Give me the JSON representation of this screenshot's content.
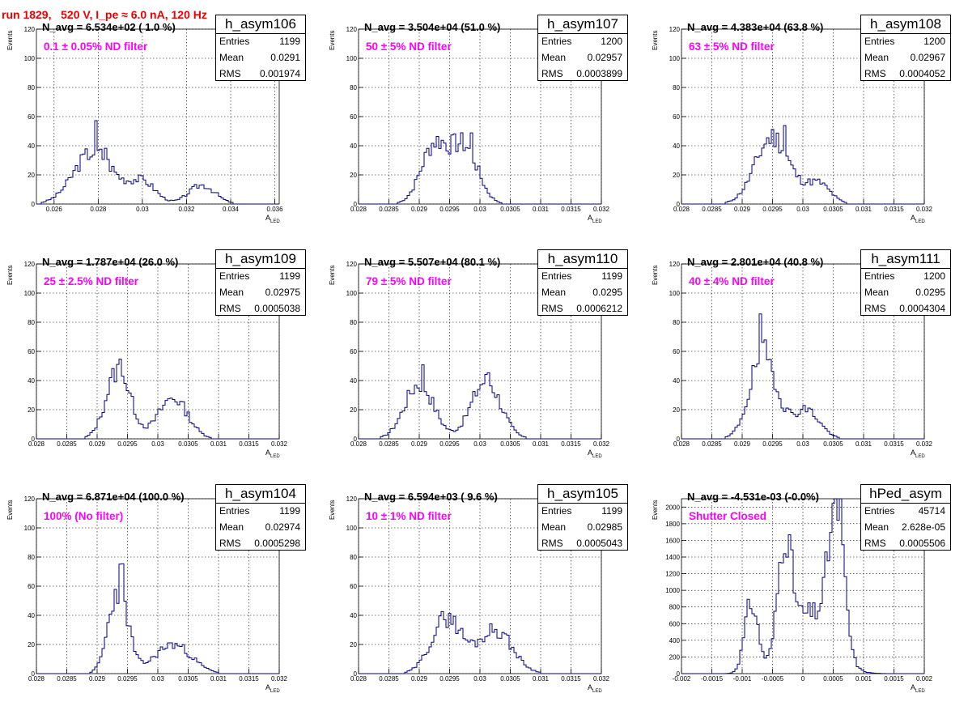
{
  "header": {
    "run_title": "run 1829,   520 V, I_pe ≈ 6.0 nA, 120 Hz"
  },
  "axis_labels": {
    "y": "Events",
    "x": "A",
    "x_sub": "LED"
  },
  "stat_labels": {
    "entries": "Entries",
    "mean": "Mean",
    "rms": "RMS"
  },
  "colors": {
    "histogram": "#000080",
    "title_text": "#ee0000",
    "filter_text": "#ff00ff",
    "grid": "#000000"
  },
  "chart_data": [
    {
      "type": "histogram",
      "name": "h_asym106",
      "navg": "N_avg = 6.534e+02 ( 1.0 %)",
      "filter": "0.1 ± 0.05% ND filter",
      "entries": "1199",
      "mean": "0.0291",
      "rms": "0.001974",
      "xlim": [
        0.0252,
        0.0362
      ],
      "ylim": [
        0,
        120
      ],
      "grid": true,
      "xticks": [
        "0.026",
        "0.028",
        "0.03",
        "0.032",
        "0.034",
        "0.036"
      ],
      "yticks": [
        "0",
        "20",
        "40",
        "60",
        "80",
        "100",
        "120"
      ],
      "peaks": [
        {
          "mu": 0.0278,
          "sigma": 0.0009,
          "amp": 36
        },
        {
          "mu": 0.03,
          "sigma": 0.0006,
          "amp": 15
        },
        {
          "mu": 0.0327,
          "sigma": 0.0006,
          "amp": 13
        }
      ],
      "spikes": [
        [
          0.0279,
          51
        ],
        [
          0.0283,
          41
        ]
      ],
      "seed": 3
    },
    {
      "type": "histogram",
      "name": "h_asym107",
      "navg": "N_avg = 3.504e+04 (51.0 %)",
      "filter": "50 ± 5% ND filter",
      "entries": "1200",
      "mean": "0.02957",
      "rms": "0.0003899",
      "xlim": [
        0.028,
        0.032
      ],
      "ylim": [
        0,
        120
      ],
      "grid": true,
      "xticks": [
        "0.028",
        "0.0285",
        "0.029",
        "0.0295",
        "0.03",
        "0.0305",
        "0.031",
        "0.0315",
        "0.032"
      ],
      "yticks": [
        "0",
        "20",
        "40",
        "60",
        "80",
        "100",
        "120"
      ],
      "peaks": [
        {
          "mu": 0.02925,
          "sigma": 0.00022,
          "amp": 40
        },
        {
          "mu": 0.02975,
          "sigma": 0.00022,
          "amp": 38
        }
      ],
      "spikes": [
        [
          0.02985,
          46
        ]
      ],
      "seed": 7
    },
    {
      "type": "histogram",
      "name": "h_asym108",
      "navg": "N_avg = 4.383e+04 (63.8 %)",
      "filter": "63 ± 5% ND filter",
      "entries": "1200",
      "mean": "0.02967",
      "rms": "0.0004052",
      "xlim": [
        0.028,
        0.032
      ],
      "ylim": [
        0,
        120
      ],
      "grid": true,
      "xticks": [
        "0.028",
        "0.0285",
        "0.029",
        "0.0295",
        "0.03",
        "0.0305",
        "0.031",
        "0.0315",
        "0.032"
      ],
      "yticks": [
        "0",
        "20",
        "40",
        "60",
        "80",
        "100",
        "120"
      ],
      "peaks": [
        {
          "mu": 0.0295,
          "sigma": 0.00028,
          "amp": 46
        },
        {
          "mu": 0.03025,
          "sigma": 0.0002,
          "amp": 14
        }
      ],
      "spikes": [
        [
          0.0297,
          55
        ]
      ],
      "seed": 11
    },
    {
      "type": "histogram",
      "name": "h_asym109",
      "navg": "N_avg = 1.787e+04 (26.0 %)",
      "filter": "25 ± 2.5% ND filter",
      "entries": "1199",
      "mean": "0.02975",
      "rms": "0.0005038",
      "xlim": [
        0.028,
        0.032
      ],
      "ylim": [
        0,
        120
      ],
      "grid": true,
      "xticks": [
        "0.028",
        "0.0285",
        "0.029",
        "0.0295",
        "0.03",
        "0.0305",
        "0.031",
        "0.0315",
        "0.032"
      ],
      "yticks": [
        "0",
        "20",
        "40",
        "60",
        "80",
        "100",
        "120"
      ],
      "peaks": [
        {
          "mu": 0.02935,
          "sigma": 0.0002,
          "amp": 47
        },
        {
          "mu": 0.03025,
          "sigma": 0.00024,
          "amp": 28
        }
      ],
      "spikes": [
        [
          0.0294,
          51
        ]
      ],
      "seed": 13
    },
    {
      "type": "histogram",
      "name": "h_asym110",
      "navg": "N_avg = 5.507e+04 (80.1 %)",
      "filter": "79 ± 5% ND filter",
      "entries": "1199",
      "mean": "0.0295",
      "rms": "0.0006212",
      "xlim": [
        0.028,
        0.032
      ],
      "ylim": [
        0,
        120
      ],
      "grid": true,
      "xticks": [
        "0.028",
        "0.0285",
        "0.029",
        "0.0295",
        "0.03",
        "0.0305",
        "0.031",
        "0.0315",
        "0.032"
      ],
      "yticks": [
        "0",
        "20",
        "40",
        "60",
        "80",
        "100",
        "120"
      ],
      "peaks": [
        {
          "mu": 0.029,
          "sigma": 0.00024,
          "amp": 38
        },
        {
          "mu": 0.0301,
          "sigma": 0.00024,
          "amp": 40
        }
      ],
      "spikes": [
        [
          0.02905,
          47
        ],
        [
          0.03015,
          47
        ]
      ],
      "seed": 17
    },
    {
      "type": "histogram",
      "name": "h_asym111",
      "navg": "N_avg = 2.801e+04 (40.8 %)",
      "filter": "40 ± 4% ND filter",
      "entries": "1200",
      "mean": "0.0295",
      "rms": "0.0004304",
      "xlim": [
        0.028,
        0.032
      ],
      "ylim": [
        0,
        120
      ],
      "grid": true,
      "xticks": [
        "0.028",
        "0.0285",
        "0.029",
        "0.0295",
        "0.03",
        "0.0305",
        "0.031",
        "0.0315",
        "0.032"
      ],
      "yticks": [
        "0",
        "20",
        "40",
        "60",
        "80",
        "100",
        "120"
      ],
      "peaks": [
        {
          "mu": 0.02935,
          "sigma": 0.00022,
          "amp": 58
        },
        {
          "mu": 0.03005,
          "sigma": 0.00022,
          "amp": 20
        }
      ],
      "spikes": [
        [
          0.0293,
          75
        ]
      ],
      "seed": 19
    },
    {
      "type": "histogram",
      "name": "h_asym104",
      "navg": "N_avg = 6.871e+04 (100.0 %)",
      "filter": "100% (No filter)",
      "entries": "1199",
      "mean": "0.02974",
      "rms": "0.0005298",
      "xlim": [
        0.028,
        0.032
      ],
      "ylim": [
        0,
        120
      ],
      "grid": true,
      "xticks": [
        "0.028",
        "0.0285",
        "0.029",
        "0.0295",
        "0.03",
        "0.0305",
        "0.031",
        "0.0315",
        "0.032"
      ],
      "yticks": [
        "0",
        "20",
        "40",
        "60",
        "80",
        "100",
        "120"
      ],
      "peaks": [
        {
          "mu": 0.02935,
          "sigma": 0.00016,
          "amp": 58
        },
        {
          "mu": 0.03025,
          "sigma": 0.0003,
          "amp": 20
        }
      ],
      "spikes": [
        [
          0.0294,
          67
        ]
      ],
      "seed": 23
    },
    {
      "type": "histogram",
      "name": "h_asym105",
      "navg": "N_avg = 6.594e+03 ( 9.6 %)",
      "filter": "10 ± 1% ND filter",
      "entries": "1199",
      "mean": "0.02985",
      "rms": "0.0005043",
      "xlim": [
        0.028,
        0.032
      ],
      "ylim": [
        0,
        120
      ],
      "grid": true,
      "xticks": [
        "0.028",
        "0.0285",
        "0.029",
        "0.0295",
        "0.03",
        "0.0305",
        "0.031",
        "0.0315",
        "0.032"
      ],
      "yticks": [
        "0",
        "20",
        "40",
        "60",
        "80",
        "100",
        "120"
      ],
      "peaks": [
        {
          "mu": 0.02945,
          "sigma": 0.00025,
          "amp": 38
        },
        {
          "mu": 0.03025,
          "sigma": 0.00028,
          "amp": 30
        }
      ],
      "spikes": [
        [
          0.0295,
          43
        ]
      ],
      "seed": 29
    },
    {
      "type": "histogram",
      "name": "hPed_asym",
      "navg": "N_avg = -4.531e-03 (-0.0%)",
      "filter": "Shutter Closed",
      "entries": "45714",
      "mean": "2.628e-05",
      "rms": "0.0005506",
      "xlim": [
        -0.002,
        0.002
      ],
      "ylim": [
        0,
        2100
      ],
      "grid": true,
      "xticks": [
        "-0.002",
        "-0.0015",
        "-0.001",
        "-0.0005",
        "0",
        "0.0005",
        "0.001",
        "0.0015",
        "0.002"
      ],
      "yticks": [
        "0",
        "200",
        "400",
        "600",
        "800",
        "1000",
        "1200",
        "1400",
        "1600",
        "1800",
        "2000"
      ],
      "peaks": [
        {
          "mu": -0.00085,
          "sigma": 0.00011,
          "amp": 830
        },
        {
          "mu": -0.0003,
          "sigma": 0.00011,
          "amp": 1350
        },
        {
          "mu": 0.00055,
          "sigma": 0.00013,
          "amp": 1700
        },
        {
          "mu": 0.0001,
          "sigma": 0.00035,
          "amp": 720
        }
      ],
      "spikes": [
        [
          0.0006,
          2020
        ]
      ],
      "seed": 31
    }
  ]
}
